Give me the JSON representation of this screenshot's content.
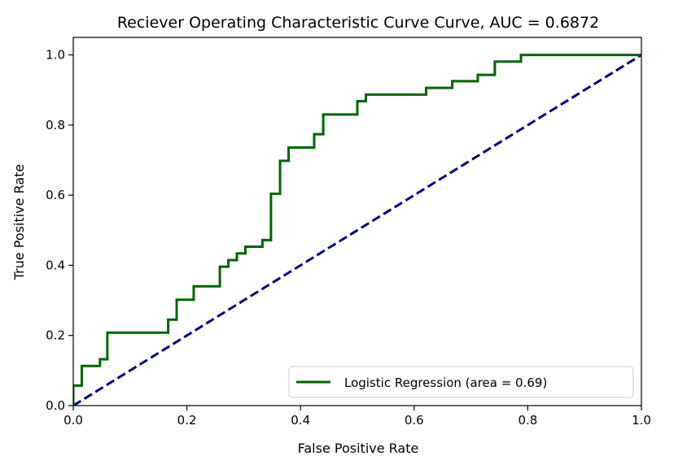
{
  "chart_data": {
    "type": "line",
    "title": "Reciever Operating Characteristic Curve Curve, AUC = 0.6872",
    "xlabel": "False Positive Rate",
    "ylabel": "True Positive Rate",
    "xlim": [
      0.0,
      1.0
    ],
    "ylim": [
      0.0,
      1.05
    ],
    "xticks": [
      0.0,
      0.2,
      0.4,
      0.6,
      0.8,
      1.0
    ],
    "xtick_labels": [
      "0.0",
      "0.2",
      "0.4",
      "0.6",
      "0.8",
      "1.0"
    ],
    "yticks": [
      0.0,
      0.2,
      0.4,
      0.6,
      0.8,
      1.0
    ],
    "ytick_labels": [
      "0.0",
      "0.2",
      "0.4",
      "0.6",
      "0.8",
      "1.0"
    ],
    "grid": false,
    "legend_position": "lower-right",
    "series": [
      {
        "name": "Logistic Regression (area = 0.69)",
        "color": "#006400",
        "style": "solid",
        "x": [
          0.0,
          0.0,
          0.015,
          0.015,
          0.047,
          0.047,
          0.06,
          0.06,
          0.167,
          0.167,
          0.182,
          0.182,
          0.212,
          0.212,
          0.258,
          0.258,
          0.273,
          0.273,
          0.288,
          0.288,
          0.303,
          0.303,
          0.333,
          0.333,
          0.348,
          0.348,
          0.364,
          0.364,
          0.379,
          0.379,
          0.424,
          0.424,
          0.44,
          0.44,
          0.5,
          0.5,
          0.515,
          0.515,
          0.621,
          0.621,
          0.667,
          0.667,
          0.712,
          0.712,
          0.742,
          0.742,
          0.788,
          0.788,
          1.0
        ],
        "y": [
          0.0,
          0.057,
          0.057,
          0.113,
          0.113,
          0.132,
          0.132,
          0.208,
          0.208,
          0.245,
          0.245,
          0.302,
          0.302,
          0.34,
          0.34,
          0.396,
          0.396,
          0.415,
          0.415,
          0.434,
          0.434,
          0.453,
          0.453,
          0.472,
          0.472,
          0.604,
          0.604,
          0.698,
          0.698,
          0.736,
          0.736,
          0.774,
          0.774,
          0.83,
          0.83,
          0.868,
          0.868,
          0.887,
          0.887,
          0.906,
          0.906,
          0.925,
          0.925,
          0.943,
          0.943,
          0.981,
          0.981,
          1.0,
          1.0
        ]
      },
      {
        "name": "",
        "color": "#000080",
        "style": "dashed",
        "x": [
          0.0,
          1.0
        ],
        "y": [
          0.0,
          1.0
        ]
      }
    ]
  }
}
